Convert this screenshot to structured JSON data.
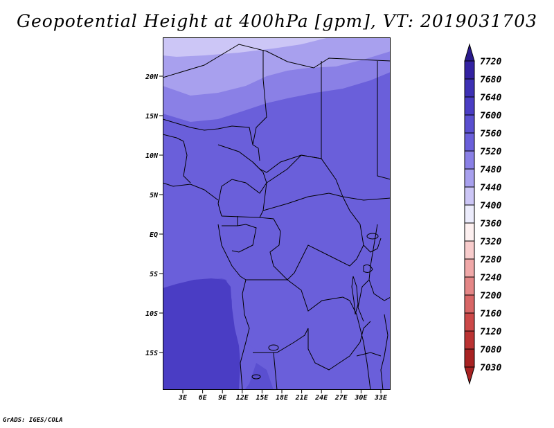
{
  "title": "Geopotential Height at 400hPa [gpm], VT: 2019031703",
  "credit": "GrADS: IGES/COLA",
  "lat_labels": [
    "20N",
    "15N",
    "10N",
    "5N",
    "EQ",
    "5S",
    "10S",
    "15S"
  ],
  "lon_labels": [
    "3E",
    "6E",
    "9E",
    "12E",
    "15E",
    "18E",
    "21E",
    "24E",
    "27E",
    "30E",
    "33E"
  ],
  "colorbar": {
    "levels": [
      "7720",
      "7680",
      "7640",
      "7600",
      "7560",
      "7520",
      "7480",
      "7440",
      "7400",
      "7360",
      "7320",
      "7280",
      "7240",
      "7200",
      "7160",
      "7120",
      "7080",
      "7030"
    ],
    "colors": [
      "#2a1a8c",
      "#3322a2",
      "#3d30b4",
      "#4a3dc4",
      "#5a4fd0",
      "#6a5fda",
      "#8a80e6",
      "#a8a0ee",
      "#ccc6f6",
      "#ececfc",
      "#fdf0f0",
      "#f8cccc",
      "#f0a8a8",
      "#e48686",
      "#d86666",
      "#cc4848",
      "#bb3333",
      "#a82222"
    ]
  },
  "regions": {
    "band_7440": "#ccc6f6",
    "band_7480": "#a8a0ee",
    "band_7520": "#8a80e6",
    "band_7560": "#6a5fda",
    "band_7600": "#5a4fd0",
    "band_7640": "#4a3dc4"
  }
}
